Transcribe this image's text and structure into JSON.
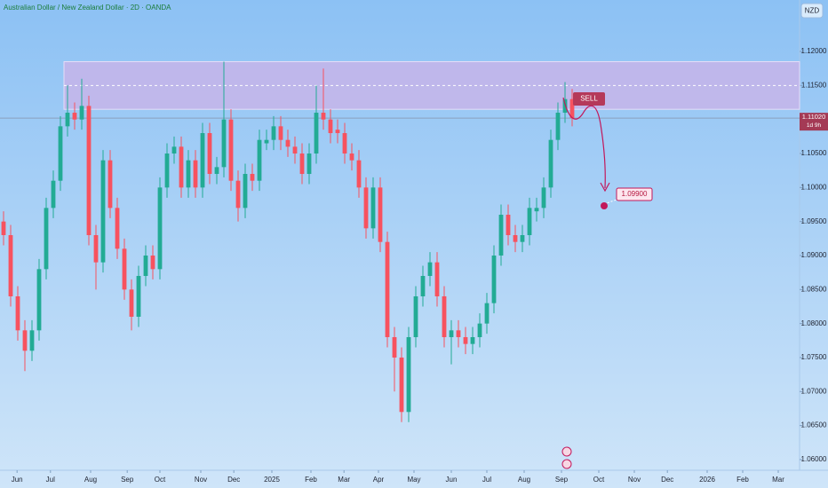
{
  "chart_data": {
    "type": "candlestick",
    "title": "Australian Dollar / New Zealand Dollar · 2D · OANDA",
    "currency": "NZD",
    "up_color": "#22ab94",
    "down_color": "#f7525f",
    "xlim": [
      -0.5,
      112
    ],
    "xticks": [
      {
        "value": 1.9,
        "label": "Jun"
      },
      {
        "value": 6.6,
        "label": "Jul"
      },
      {
        "value": 12.25,
        "label": "Aug"
      },
      {
        "value": 17.4,
        "label": "Sep"
      },
      {
        "value": 22,
        "label": "Oct"
      },
      {
        "value": 27.75,
        "label": "Nov"
      },
      {
        "value": 32.4,
        "label": "Dec"
      },
      {
        "value": 37.75,
        "label": "2025"
      },
      {
        "value": 43.25,
        "label": "Feb"
      },
      {
        "value": 47.9,
        "label": "Mar"
      },
      {
        "value": 52.75,
        "label": "Apr"
      },
      {
        "value": 57.75,
        "label": "May"
      },
      {
        "value": 63,
        "label": "Jun"
      },
      {
        "value": 68,
        "label": "Jul"
      },
      {
        "value": 73.25,
        "label": "Aug"
      },
      {
        "value": 78.5,
        "label": "Sep"
      },
      {
        "value": 83.75,
        "label": "Oct"
      },
      {
        "value": 88.75,
        "label": "Nov"
      },
      {
        "value": 93.4,
        "label": "Dec"
      },
      {
        "value": 99,
        "label": "2026"
      },
      {
        "value": 104,
        "label": "Feb"
      },
      {
        "value": 109,
        "label": "Mar"
      }
    ],
    "ylim": [
      1.05843,
      1.12757
    ],
    "yticks": [
      {
        "value": 1.06,
        "label": "1.06000"
      },
      {
        "value": 1.065,
        "label": "1.06500"
      },
      {
        "value": 1.07,
        "label": "1.07000"
      },
      {
        "value": 1.075,
        "label": "1.07500"
      },
      {
        "value": 1.08,
        "label": "1.08000"
      },
      {
        "value": 1.085,
        "label": "1.08500"
      },
      {
        "value": 1.09,
        "label": "1.09000"
      },
      {
        "value": 1.095,
        "label": "1.09500"
      },
      {
        "value": 1.1,
        "label": "1.10000"
      },
      {
        "value": 1.105,
        "label": "1.10500"
      },
      {
        "value": 1.11,
        "label": "1.11000"
      },
      {
        "value": 1.115,
        "label": "1.11500"
      },
      {
        "value": 1.12,
        "label": "1.12000"
      }
    ],
    "open": [
      1.095,
      1.093,
      1.084,
      1.079,
      1.076,
      1.079,
      1.088,
      1.097,
      1.101,
      1.109,
      1.111,
      1.11,
      1.112,
      1.093,
      1.089,
      1.104,
      1.097,
      1.091,
      1.085,
      1.081,
      1.087,
      1.09,
      1.088,
      1.1,
      1.105,
      1.106,
      1.1,
      1.104,
      1.1,
      1.108,
      1.102,
      1.103,
      1.11,
      1.101,
      1.097,
      1.102,
      1.101,
      1.1065,
      1.107,
      1.109,
      1.107,
      1.106,
      1.105,
      1.102,
      1.105,
      1.111,
      1.11,
      1.1085,
      1.108,
      1.105,
      1.104,
      1.1,
      1.094,
      1.1,
      1.092,
      1.078,
      1.075,
      1.067,
      1.078,
      1.084,
      1.087,
      1.089,
      1.084,
      1.078,
      1.079,
      1.078,
      1.077,
      1.078,
      1.08,
      1.083,
      1.09,
      1.096,
      1.093,
      1.092,
      1.093,
      1.0965,
      1.097,
      1.1,
      1.107,
      1.111,
      1.113
    ],
    "high": [
      1.0965,
      1.0945,
      1.0855,
      1.0805,
      1.0805,
      1.0895,
      1.0985,
      1.1025,
      1.1105,
      1.115,
      1.1125,
      1.116,
      1.1135,
      1.0945,
      1.1055,
      1.1055,
      1.0985,
      1.0925,
      1.0865,
      1.0885,
      1.0915,
      1.0915,
      1.1015,
      1.1065,
      1.1075,
      1.1075,
      1.1055,
      1.1055,
      1.1095,
      1.1095,
      1.1045,
      1.1185,
      1.1115,
      1.1025,
      1.1035,
      1.1035,
      1.1085,
      1.1085,
      1.1105,
      1.1105,
      1.1085,
      1.1075,
      1.1065,
      1.1065,
      1.115,
      1.1175,
      1.1115,
      1.11,
      1.1095,
      1.1065,
      1.1055,
      1.1015,
      1.1015,
      1.1015,
      1.0935,
      1.0795,
      1.0765,
      1.0795,
      1.0855,
      1.0885,
      1.0905,
      1.0905,
      1.0855,
      1.0805,
      1.0805,
      1.0795,
      1.0795,
      1.0815,
      1.0845,
      1.0915,
      1.0975,
      1.0975,
      1.0945,
      1.0945,
      1.0985,
      1.0985,
      1.1015,
      1.1085,
      1.1125,
      1.1155,
      1.1145
    ],
    "low": [
      1.0915,
      1.0825,
      1.0775,
      1.073,
      1.0745,
      1.0775,
      1.0865,
      1.0955,
      1.0995,
      1.1075,
      1.1085,
      1.1085,
      1.0915,
      1.085,
      1.0875,
      1.0955,
      1.0895,
      1.0835,
      1.079,
      1.0795,
      1.0855,
      1.0865,
      1.0865,
      1.0985,
      1.1035,
      1.0985,
      1.0985,
      1.0985,
      1.0985,
      1.1005,
      1.1005,
      1.1015,
      1.0995,
      1.095,
      1.0955,
      1.0995,
      1.0995,
      1.1055,
      1.1055,
      1.1055,
      1.1045,
      1.1035,
      1.1005,
      1.1005,
      1.1035,
      1.1085,
      1.1065,
      1.1065,
      1.1035,
      1.1025,
      1.0985,
      1.0925,
      1.0925,
      1.0905,
      1.0765,
      1.07,
      1.0655,
      1.0655,
      1.0765,
      1.0825,
      1.0855,
      1.0825,
      1.0765,
      1.074,
      1.0765,
      1.0755,
      1.0755,
      1.0765,
      1.0785,
      1.0815,
      1.0885,
      1.0915,
      1.0905,
      1.0905,
      1.0915,
      1.095,
      1.0955,
      1.0985,
      1.1055,
      1.1095,
      1.109
    ],
    "close": [
      1.093,
      1.084,
      1.079,
      1.076,
      1.079,
      1.088,
      1.097,
      1.101,
      1.109,
      1.111,
      1.11,
      1.112,
      1.093,
      1.089,
      1.104,
      1.097,
      1.091,
      1.085,
      1.081,
      1.087,
      1.09,
      1.088,
      1.1,
      1.105,
      1.106,
      1.1,
      1.104,
      1.1,
      1.108,
      1.102,
      1.103,
      1.11,
      1.101,
      1.097,
      1.102,
      1.101,
      1.107,
      1.107,
      1.109,
      1.107,
      1.106,
      1.105,
      1.102,
      1.105,
      1.111,
      1.11,
      1.108,
      1.108,
      1.105,
      1.104,
      1.1,
      1.094,
      1.1,
      1.092,
      1.078,
      1.075,
      1.067,
      1.078,
      1.084,
      1.087,
      1.089,
      1.084,
      1.078,
      1.079,
      1.078,
      1.077,
      1.078,
      1.08,
      1.083,
      1.09,
      1.096,
      1.093,
      1.092,
      1.093,
      1.097,
      1.097,
      1.1,
      1.107,
      1.111,
      1.113,
      1.1102
    ],
    "zone_low": 1.1115,
    "zone_high": 1.1185,
    "zone_mid": 1.115,
    "sell_label": "SELL",
    "target": {
      "value": 1.099,
      "label": "1.09900"
    },
    "last_price": {
      "value": 1.1102,
      "label": "1.11020"
    },
    "countdown": "1d 9h"
  }
}
